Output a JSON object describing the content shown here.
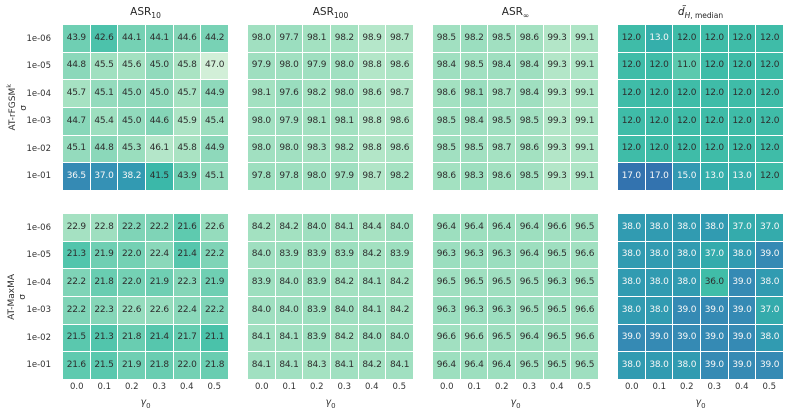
{
  "colors": {
    "background": "#ffffff",
    "grid_gap": "#ffffff",
    "cell_text_dark": "#2d2d2d",
    "cell_text_light": "#f7f7f7",
    "tick_text": "#333333",
    "title_text": "#262626",
    "gradient": [
      [
        0.0,
        "#3373af"
      ],
      [
        0.12,
        "#3590b5"
      ],
      [
        0.3,
        "#309fb0"
      ],
      [
        0.45,
        "#35b0ab"
      ],
      [
        0.56,
        "#3fbda8"
      ],
      [
        0.67,
        "#5cc9ae"
      ],
      [
        0.78,
        "#85d6b8"
      ],
      [
        0.88,
        "#a9e3c3"
      ],
      [
        1.0,
        "#d9f1dc"
      ]
    ]
  },
  "figure": {
    "y_ticks": [
      "1e-06",
      "1e-05",
      "1e-04",
      "1e-03",
      "1e-02",
      "1e-01"
    ],
    "x_ticks": [
      "0.0",
      "0.1",
      "0.2",
      "0.3",
      "0.4",
      "0.5"
    ],
    "xlabel": {
      "base": "γ",
      "base_italic": true,
      "sub": "0"
    },
    "row_groups": [
      {
        "name": "AT-rFGSM",
        "sup": "k",
        "sigma": "σ"
      },
      {
        "name": "AT-MaxMA",
        "sup": "",
        "sigma": "σ"
      }
    ]
  },
  "chart_data": [
    {
      "id": "rfgsm-asr10",
      "type": "heatmap",
      "row": 0,
      "col": 0,
      "row_group": "AT-rFGSM^k",
      "title": {
        "base": "ASR",
        "base_italic": false,
        "sub": "10",
        "sub_italic": false,
        "sub2": ""
      },
      "y_categories": [
        "1e-06",
        "1e-05",
        "1e-04",
        "1e-03",
        "1e-02",
        "1e-01"
      ],
      "x_categories": [
        "0.0",
        "0.1",
        "0.2",
        "0.3",
        "0.4",
        "0.5"
      ],
      "values": [
        [
          43.9,
          42.6,
          44.1,
          44.1,
          44.6,
          44.2
        ],
        [
          44.8,
          45.5,
          45.6,
          45.0,
          45.8,
          47.0
        ],
        [
          45.7,
          45.1,
          45.0,
          45.0,
          45.7,
          44.9
        ],
        [
          44.7,
          45.4,
          45.0,
          44.6,
          45.9,
          45.4
        ],
        [
          45.1,
          44.8,
          45.3,
          46.1,
          45.8,
          44.9
        ],
        [
          36.5,
          37.0,
          38.2,
          41.5,
          43.9,
          45.1
        ]
      ],
      "scale": {
        "vmin": 35.4,
        "vmax": 47.2,
        "reverse": false
      }
    },
    {
      "id": "rfgsm-asr100",
      "type": "heatmap",
      "row": 0,
      "col": 1,
      "row_group": "AT-rFGSM^k",
      "title": {
        "base": "ASR",
        "base_italic": false,
        "sub": "100",
        "sub_italic": false,
        "sub2": ""
      },
      "y_categories": [
        "1e-06",
        "1e-05",
        "1e-04",
        "1e-03",
        "1e-02",
        "1e-01"
      ],
      "x_categories": [
        "0.0",
        "0.1",
        "0.2",
        "0.3",
        "0.4",
        "0.5"
      ],
      "values": [
        [
          98.0,
          97.7,
          98.1,
          98.2,
          98.9,
          98.7
        ],
        [
          97.9,
          98.0,
          97.9,
          98.0,
          98.8,
          98.6
        ],
        [
          98.1,
          97.6,
          98.2,
          98.0,
          98.6,
          98.7
        ],
        [
          98.0,
          97.9,
          98.1,
          98.1,
          98.8,
          98.6
        ],
        [
          98.0,
          98.0,
          98.3,
          98.2,
          98.8,
          98.6
        ],
        [
          97.8,
          97.8,
          98.0,
          97.9,
          98.7,
          98.2
        ]
      ],
      "scale": {
        "vmin": 83.5,
        "vmax": 100.4,
        "reverse": false
      }
    },
    {
      "id": "rfgsm-asrinf",
      "type": "heatmap",
      "row": 0,
      "col": 2,
      "row_group": "AT-rFGSM^k",
      "title": {
        "base": "ASR",
        "base_italic": false,
        "sub": "∞",
        "sub_italic": false,
        "sub2": ""
      },
      "y_categories": [
        "1e-06",
        "1e-05",
        "1e-04",
        "1e-03",
        "1e-02",
        "1e-01"
      ],
      "x_categories": [
        "0.0",
        "0.1",
        "0.2",
        "0.3",
        "0.4",
        "0.5"
      ],
      "values": [
        [
          98.5,
          98.2,
          98.5,
          98.6,
          99.3,
          99.1
        ],
        [
          98.4,
          98.5,
          98.4,
          98.4,
          99.3,
          99.1
        ],
        [
          98.6,
          98.1,
          98.7,
          98.4,
          99.3,
          99.1
        ],
        [
          98.5,
          98.4,
          98.5,
          98.5,
          99.3,
          99.1
        ],
        [
          98.5,
          98.5,
          98.7,
          98.6,
          99.3,
          99.1
        ],
        [
          98.6,
          98.3,
          98.6,
          98.5,
          99.3,
          99.1
        ]
      ],
      "scale": {
        "vmin": 84.0,
        "vmax": 100.9,
        "reverse": false
      }
    },
    {
      "id": "rfgsm-dh-median",
      "type": "heatmap",
      "row": 0,
      "col": 3,
      "row_group": "AT-rFGSM^k",
      "title": {
        "base": "d̃",
        "base_italic": true,
        "sub": "H",
        "sub_italic": true,
        "sub2": ", median"
      },
      "y_categories": [
        "1e-06",
        "1e-05",
        "1e-04",
        "1e-03",
        "1e-02",
        "1e-01"
      ],
      "x_categories": [
        "0.0",
        "0.1",
        "0.2",
        "0.3",
        "0.4",
        "0.5"
      ],
      "values": [
        [
          12.0,
          13.0,
          12.0,
          12.0,
          12.0,
          12.0
        ],
        [
          12.0,
          12.0,
          11.0,
          12.0,
          12.0,
          12.0
        ],
        [
          12.0,
          12.0,
          12.0,
          12.0,
          12.0,
          12.0
        ],
        [
          12.0,
          12.0,
          12.0,
          12.0,
          12.0,
          12.0
        ],
        [
          12.0,
          12.0,
          12.0,
          12.0,
          12.0,
          12.0
        ],
        [
          17.0,
          17.0,
          15.0,
          13.0,
          13.0,
          12.0
        ]
      ],
      "scale": {
        "vmin": 8.0,
        "vmax": 17.0,
        "reverse": true
      }
    },
    {
      "id": "maxma-asr10",
      "type": "heatmap",
      "row": 1,
      "col": 0,
      "row_group": "AT-MaxMA",
      "title": {
        "base": "ASR",
        "base_italic": false,
        "sub": "10",
        "sub_italic": false,
        "sub2": ""
      },
      "y_categories": [
        "1e-06",
        "1e-05",
        "1e-04",
        "1e-03",
        "1e-02",
        "1e-01"
      ],
      "x_categories": [
        "0.0",
        "0.1",
        "0.2",
        "0.3",
        "0.4",
        "0.5"
      ],
      "values": [
        [
          22.9,
          22.8,
          22.2,
          22.2,
          21.6,
          22.6
        ],
        [
          21.3,
          21.9,
          22.0,
          22.4,
          21.4,
          22.2
        ],
        [
          22.2,
          21.8,
          22.0,
          21.9,
          22.3,
          21.9
        ],
        [
          22.2,
          22.3,
          22.6,
          22.6,
          22.4,
          22.2
        ],
        [
          21.5,
          21.3,
          21.8,
          21.4,
          21.7,
          21.1
        ],
        [
          21.6,
          21.5,
          21.9,
          21.8,
          22.0,
          21.8
        ]
      ],
      "scale": {
        "vmin": 17.0,
        "vmax": 23.8,
        "reverse": false
      }
    },
    {
      "id": "maxma-asr100",
      "type": "heatmap",
      "row": 1,
      "col": 1,
      "row_group": "AT-MaxMA",
      "title": {
        "base": "ASR",
        "base_italic": false,
        "sub": "100",
        "sub_italic": false,
        "sub2": ""
      },
      "y_categories": [
        "1e-06",
        "1e-05",
        "1e-04",
        "1e-03",
        "1e-02",
        "1e-01"
      ],
      "x_categories": [
        "0.0",
        "0.1",
        "0.2",
        "0.3",
        "0.4",
        "0.5"
      ],
      "values": [
        [
          84.2,
          84.2,
          84.0,
          84.1,
          84.4,
          84.0
        ],
        [
          84.0,
          83.9,
          83.9,
          83.9,
          84.2,
          83.9
        ],
        [
          83.9,
          84.0,
          83.9,
          84.2,
          84.1,
          84.2
        ],
        [
          84.0,
          84.0,
          83.9,
          84.0,
          84.1,
          84.2
        ],
        [
          84.1,
          84.1,
          83.9,
          84.2,
          84.0,
          84.0
        ],
        [
          84.1,
          84.1,
          84.3,
          84.1,
          84.2,
          84.1
        ]
      ],
      "scale": {
        "vmin": 69.0,
        "vmax": 86.6,
        "reverse": false
      }
    },
    {
      "id": "maxma-asrinf",
      "type": "heatmap",
      "row": 1,
      "col": 2,
      "row_group": "AT-MaxMA",
      "title": {
        "base": "ASR",
        "base_italic": false,
        "sub": "∞",
        "sub_italic": false,
        "sub2": ""
      },
      "y_categories": [
        "1e-06",
        "1e-05",
        "1e-04",
        "1e-03",
        "1e-02",
        "1e-01"
      ],
      "x_categories": [
        "0.0",
        "0.1",
        "0.2",
        "0.3",
        "0.4",
        "0.5"
      ],
      "values": [
        [
          96.4,
          96.4,
          96.4,
          96.4,
          96.6,
          96.5
        ],
        [
          96.3,
          96.3,
          96.3,
          96.4,
          96.5,
          96.6
        ],
        [
          96.5,
          96.5,
          96.5,
          96.5,
          96.3,
          96.5
        ],
        [
          96.3,
          96.3,
          96.3,
          96.5,
          96.5,
          96.6
        ],
        [
          96.6,
          96.6,
          96.5,
          96.4,
          96.5,
          96.6
        ],
        [
          96.4,
          96.4,
          96.4,
          96.5,
          96.5,
          96.5
        ]
      ],
      "scale": {
        "vmin": 82.1,
        "vmax": 99.0,
        "reverse": false
      }
    },
    {
      "id": "maxma-dh-median",
      "type": "heatmap",
      "row": 1,
      "col": 3,
      "row_group": "AT-MaxMA",
      "title": {
        "base": "d̃",
        "base_italic": true,
        "sub": "H",
        "sub_italic": true,
        "sub2": ", median"
      },
      "y_categories": [
        "1e-06",
        "1e-05",
        "1e-04",
        "1e-03",
        "1e-02",
        "1e-01"
      ],
      "x_categories": [
        "0.0",
        "0.1",
        "0.2",
        "0.3",
        "0.4",
        "0.5"
      ],
      "values": [
        [
          38.0,
          38.0,
          38.0,
          38.0,
          37.0,
          37.0
        ],
        [
          38.0,
          38.0,
          38.0,
          37.0,
          38.0,
          39.0
        ],
        [
          38.0,
          38.0,
          38.0,
          36.0,
          39.0,
          38.0
        ],
        [
          38.0,
          38.0,
          39.0,
          39.0,
          39.0,
          37.0
        ],
        [
          39.0,
          39.0,
          39.0,
          39.0,
          39.0,
          38.0
        ],
        [
          38.0,
          38.0,
          38.0,
          39.0,
          39.0,
          39.0
        ]
      ],
      "scale": {
        "vmin": 33.2,
        "vmax": 39.6,
        "reverse": true
      }
    }
  ]
}
